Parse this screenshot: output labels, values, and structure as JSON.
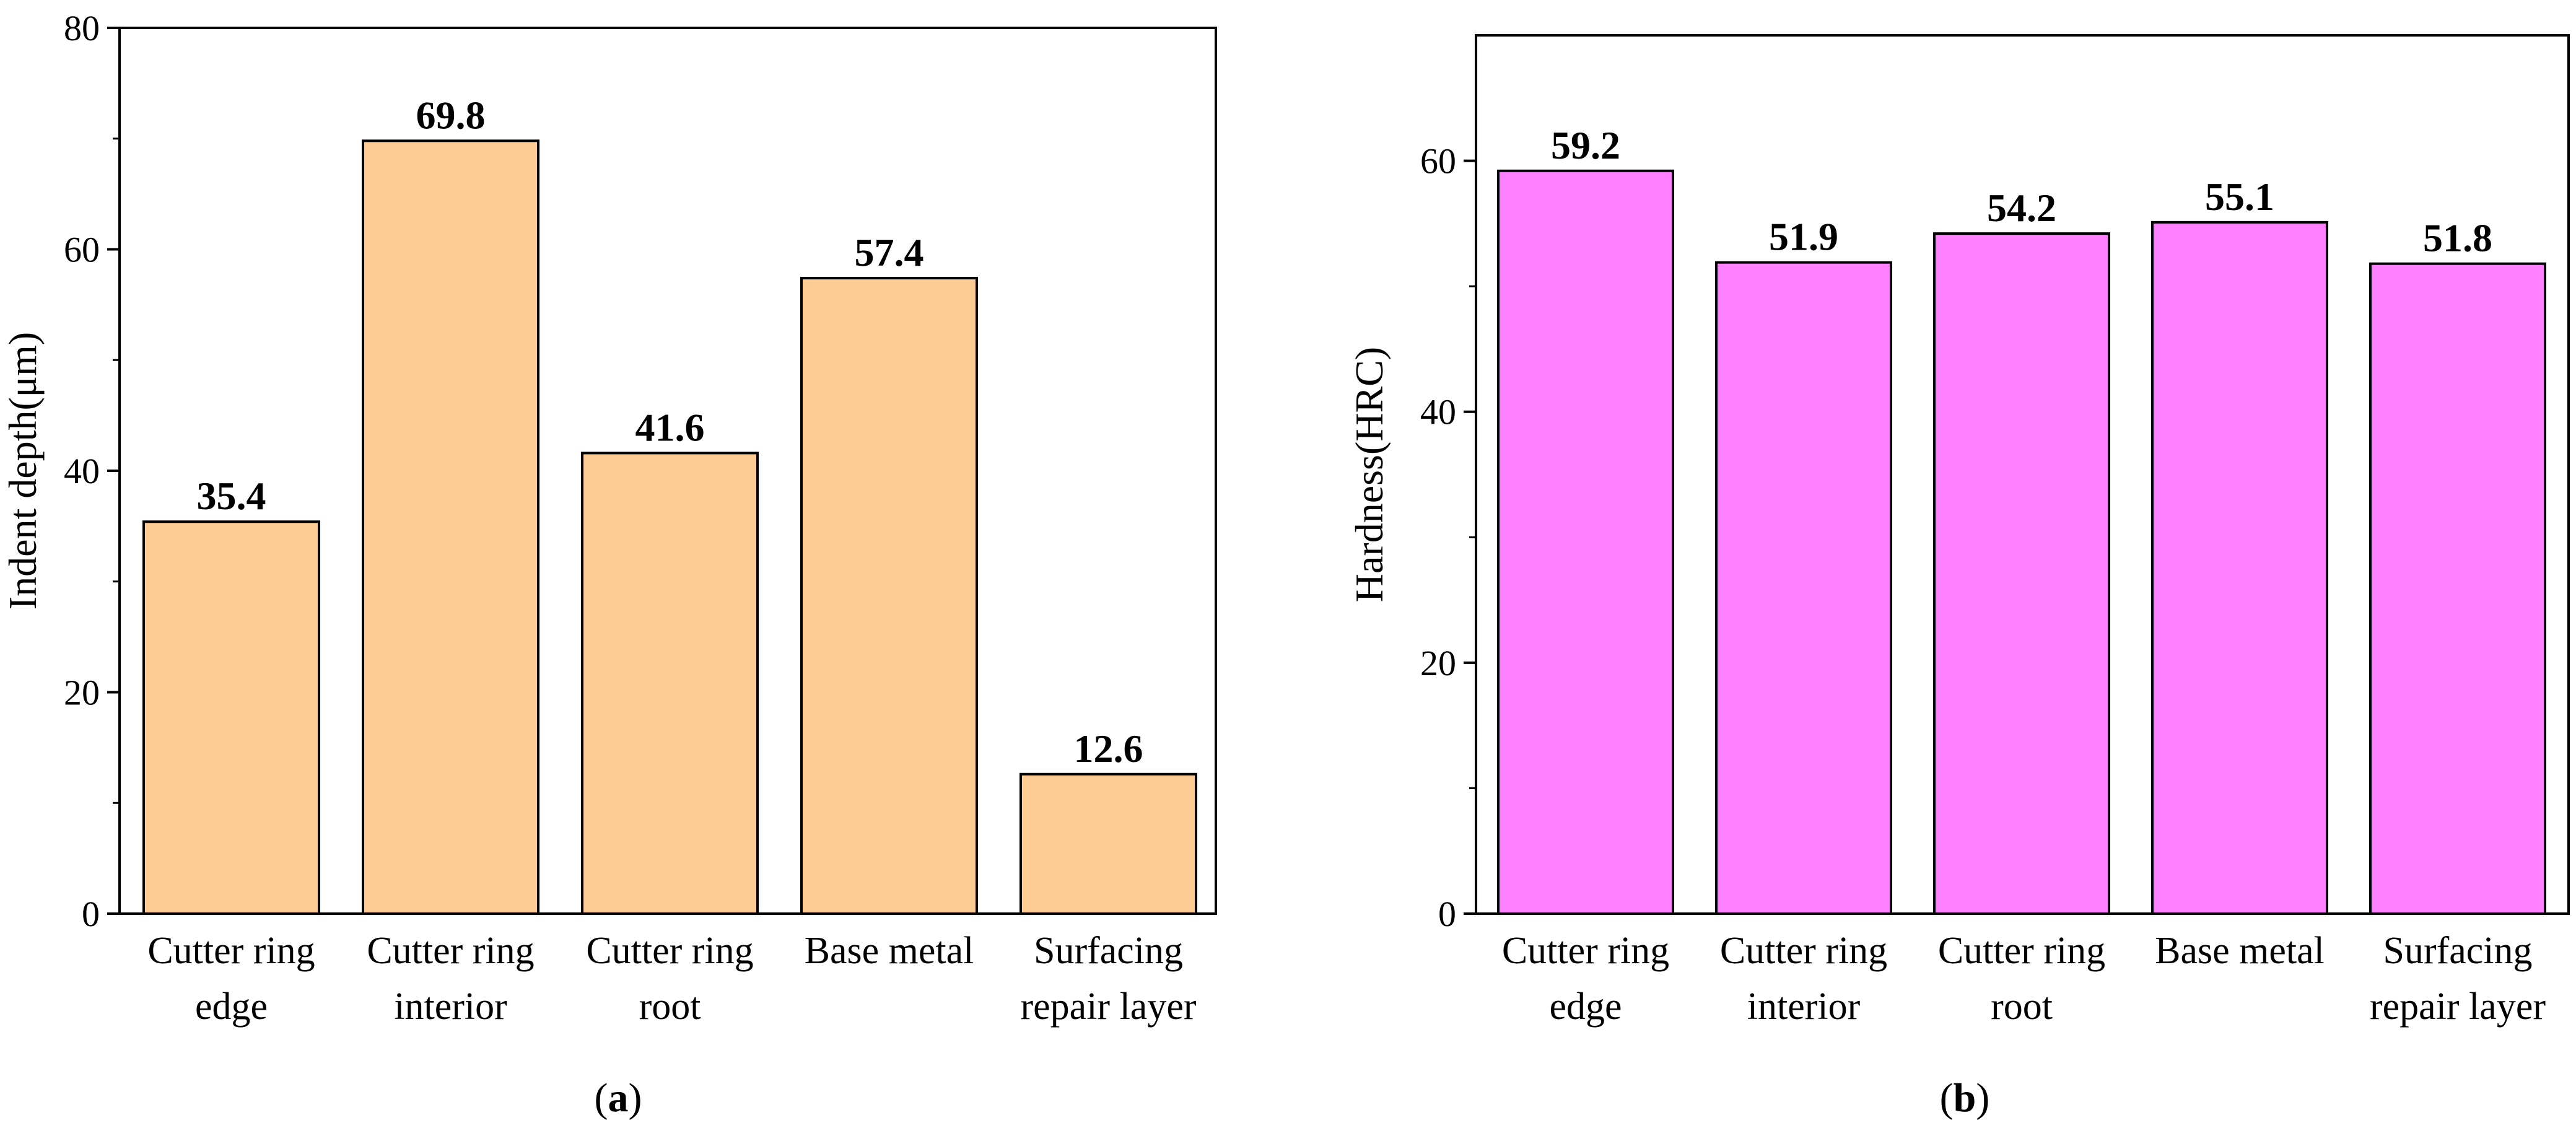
{
  "chart_data": [
    {
      "type": "bar",
      "panel": "(a)",
      "categories": [
        [
          "Cutter ring",
          "edge"
        ],
        [
          "Cutter ring",
          "interior"
        ],
        [
          "Cutter ring",
          "root"
        ],
        [
          "Base metal"
        ],
        [
          "Surfacing",
          "repair layer"
        ]
      ],
      "values": [
        35.4,
        69.8,
        41.6,
        57.4,
        12.6
      ],
      "value_labels": [
        "35.4",
        "69.8",
        "41.6",
        "57.4",
        "12.6"
      ],
      "ylabel": "Indent depth(μm)",
      "xlabel": "",
      "ylim": [
        0,
        80
      ],
      "yticks": [
        0,
        20,
        40,
        60,
        80
      ],
      "bar_color": "#FDCB94",
      "grid": false
    },
    {
      "type": "bar",
      "panel": "(b)",
      "categories": [
        [
          "Cutter ring",
          "edge"
        ],
        [
          "Cutter ring",
          "interior"
        ],
        [
          "Cutter ring",
          "root"
        ],
        [
          "Base metal"
        ],
        [
          "Surfacing",
          "repair layer"
        ]
      ],
      "values": [
        59.2,
        51.9,
        54.2,
        55.1,
        51.8
      ],
      "value_labels": [
        "59.2",
        "51.9",
        "54.2",
        "55.1",
        "51.8"
      ],
      "ylabel": "Hardness(HRC)",
      "xlabel": "",
      "ylim": [
        0,
        70
      ],
      "yticks": [
        0,
        20,
        40,
        60
      ],
      "bar_color": "#FF80FF",
      "grid": false
    }
  ],
  "captions": {
    "a": {
      "open": "(",
      "letter": "a",
      "close": ")"
    },
    "b": {
      "open": "(",
      "letter": "b",
      "close": ")"
    }
  }
}
